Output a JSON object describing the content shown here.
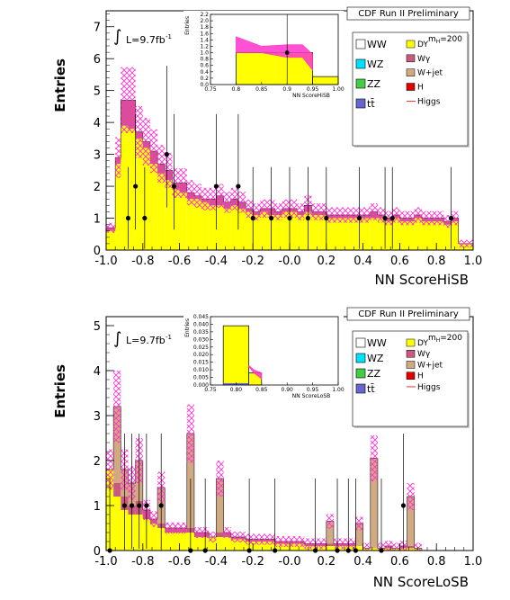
{
  "colors": {
    "dy": "#ffff00",
    "wgamma": "#c85a82",
    "wjet": "#d2aa82",
    "h": "#e00000",
    "ww": "#ffffff",
    "wz": "#00e0ff",
    "zz": "#44cc44",
    "tt": "#6666cc",
    "band": "#ff33cc",
    "data": "#000000"
  },
  "legend": {
    "mass": "m",
    "mass_sub": "H",
    "mass_val": "=200",
    "items": [
      {
        "label": "WW",
        "key": "ww"
      },
      {
        "label": "DY",
        "key": "dy"
      },
      {
        "label": "WZ",
        "key": "wz"
      },
      {
        "label": "Wγ",
        "key": "wgamma"
      },
      {
        "label": "ZZ",
        "key": "zz"
      },
      {
        "label": "W+jet",
        "key": "wjet"
      },
      {
        "label": "tt̄",
        "key": "tt"
      },
      {
        "label": "H",
        "key": "h"
      },
      {
        "label": "Higgs",
        "key": "higgs"
      }
    ]
  },
  "chart_data": [
    {
      "type": "bar",
      "title": "CDF Run II Preliminary",
      "lumi": "L=9.7fb",
      "lumi_sup": "-1",
      "xlabel": "NN ScoreHiSB",
      "ylabel": "Entries",
      "xlim": [
        -1.0,
        1.0
      ],
      "ylim": [
        0,
        7.5
      ],
      "xticks": [
        "-1.0",
        "-0.8",
        "-0.6",
        "-0.4",
        "-0.2",
        "-0.0",
        "0.2",
        "0.4",
        "0.6",
        "0.8",
        "1.0"
      ],
      "yticks": [
        "0",
        "1",
        "2",
        "3",
        "4",
        "5",
        "6",
        "7"
      ],
      "bin_edges": [
        -1.0,
        -0.95,
        -0.92,
        -0.88,
        -0.84,
        -0.8,
        -0.76,
        -0.72,
        -0.68,
        -0.64,
        -0.6,
        -0.56,
        -0.52,
        -0.48,
        -0.44,
        -0.4,
        -0.36,
        -0.32,
        -0.28,
        -0.24,
        -0.2,
        -0.16,
        -0.12,
        -0.08,
        -0.04,
        0.0,
        0.04,
        0.08,
        0.12,
        0.16,
        0.2,
        0.24,
        0.28,
        0.32,
        0.36,
        0.4,
        0.44,
        0.48,
        0.52,
        0.56,
        0.6,
        0.64,
        0.68,
        0.72,
        0.76,
        0.8,
        0.84,
        0.88,
        0.92,
        0.95,
        1.0
      ],
      "series": [
        {
          "name": "DY",
          "key": "dy",
          "values": [
            0.6,
            2.7,
            3.9,
            3.8,
            3.5,
            3.2,
            2.7,
            2.4,
            2.2,
            1.9,
            1.8,
            1.6,
            1.6,
            1.5,
            1.4,
            1.4,
            1.3,
            1.4,
            1.3,
            1.2,
            1.1,
            1.2,
            1.1,
            1.1,
            1.2,
            1.2,
            1.1,
            1.2,
            1.1,
            1.1,
            1.0,
            1.0,
            1.0,
            1.0,
            1.0,
            1.0,
            1.0,
            1.0,
            0.9,
            1.0,
            0.9,
            0.9,
            1.0,
            0.9,
            0.9,
            0.9,
            0.8,
            0.9,
            0.2,
            0.2
          ]
        },
        {
          "name": "Wγ",
          "key": "wgamma",
          "values": [
            0.1,
            0.2,
            0.8,
            0.9,
            0.2,
            0.2,
            0.4,
            0.3,
            0.3,
            0.2,
            0.3,
            0.2,
            0.1,
            0.1,
            0.2,
            0.3,
            0.2,
            0.2,
            0.2,
            0.1,
            0.1,
            0.1,
            0.2,
            0.1,
            0.1,
            0.1,
            0.1,
            0.2,
            0.1,
            0.1,
            0.1,
            0.1,
            0.1,
            0.1,
            0.1,
            0.1,
            0.2,
            0.1,
            0.1,
            0.1,
            0.1,
            0.1,
            0.1,
            0.1,
            0.1,
            0.1,
            0.1,
            0.1,
            0.0,
            0.0
          ]
        },
        {
          "name": "W+jet",
          "key": "wjet",
          "values": [
            0.0,
            0.0,
            0.0,
            0.0,
            0.0,
            0.0,
            0.0,
            0.0,
            0.0,
            0.0,
            0.0,
            0.0,
            0.0,
            0.0,
            0.0,
            0.0,
            0.0,
            0.0,
            0.0,
            0.0,
            0.0,
            0.0,
            0.0,
            0.0,
            0.0,
            0.0,
            0.0,
            0.0,
            0.0,
            0.0,
            0.0,
            0.0,
            0.0,
            0.0,
            0.0,
            0.0,
            0.0,
            0.0,
            0.0,
            0.0,
            0.0,
            0.0,
            0.0,
            0.0,
            0.0,
            0.0,
            0.0,
            0.0,
            0.0,
            0.0
          ]
        }
      ],
      "band_rel": 0.22,
      "data_points": {
        "x": [
          -0.88,
          -0.84,
          -0.79,
          -0.67,
          -0.63,
          -0.4,
          -0.28,
          -0.2,
          -0.1,
          0.0,
          0.1,
          0.2,
          0.38,
          0.52,
          0.56,
          0.88
        ],
        "y": [
          1,
          2,
          1,
          3,
          2,
          2,
          2,
          1,
          1,
          1,
          1,
          1,
          1,
          1,
          1,
          1
        ]
      },
      "inset": {
        "xlabel": "NN ScoreHiSB",
        "ylabel": "Entries",
        "xlim": [
          0.75,
          1.0
        ],
        "ylim": [
          0,
          2.2
        ],
        "xticks": [
          "0.75",
          "0.8",
          "0.85",
          "0.9",
          "0.95",
          "1.00"
        ],
        "yticks": [
          "0.0",
          "0.2",
          "0.4",
          "0.6",
          "0.8",
          "1.0",
          "1.2",
          "1.4",
          "1.6",
          "1.8",
          "2.0",
          "2.2"
        ],
        "bin_edges": [
          0.8,
          0.95,
          1.0
        ],
        "dy_values": [
          1.0,
          0.25
        ],
        "band_x": [
          0.8,
          0.85,
          0.9,
          0.93,
          0.95
        ],
        "band_lo": [
          1.0,
          1.0,
          0.85,
          0.85,
          0.45
        ],
        "band_hi": [
          1.5,
          1.2,
          1.25,
          1.25,
          0.95
        ],
        "data_x": [
          0.9
        ],
        "data_y": [
          1.0
        ]
      }
    },
    {
      "type": "bar",
      "title": "CDF Run II Preliminary",
      "lumi": "L=9.7fb",
      "lumi_sup": "-1",
      "xlabel": "NN ScoreLoSB",
      "ylabel": "Entries",
      "xlim": [
        -1.0,
        1.0
      ],
      "ylim": [
        0,
        5.2
      ],
      "xticks": [
        "-1.0",
        "-0.8",
        "-0.6",
        "-0.4",
        "-0.2",
        "-0.0",
        "0.2",
        "0.4",
        "0.6",
        "0.8",
        "1.0"
      ],
      "yticks": [
        "0",
        "1",
        "2",
        "3",
        "4",
        "5"
      ],
      "bin_edges": [
        -1.0,
        -0.96,
        -0.92,
        -0.88,
        -0.84,
        -0.8,
        -0.76,
        -0.72,
        -0.68,
        -0.64,
        -0.6,
        -0.56,
        -0.52,
        -0.48,
        -0.44,
        -0.4,
        -0.36,
        -0.32,
        -0.28,
        -0.24,
        -0.2,
        -0.16,
        -0.12,
        -0.08,
        -0.04,
        0.0,
        0.04,
        0.08,
        0.12,
        0.16,
        0.2,
        0.24,
        0.28,
        0.32,
        0.36,
        0.4,
        0.44,
        0.48,
        0.52,
        0.56,
        0.6,
        0.64,
        0.68,
        0.72,
        0.76,
        0.8,
        0.84,
        0.88,
        0.92,
        0.96,
        1.0
      ],
      "series": [
        {
          "name": "DY",
          "key": "dy",
          "values": [
            1.8,
            1.2,
            0.9,
            0.8,
            0.8,
            0.7,
            0.6,
            0.5,
            0.4,
            0.4,
            0.4,
            0.4,
            0.3,
            0.3,
            0.3,
            0.3,
            0.3,
            0.25,
            0.25,
            0.2,
            0.2,
            0.2,
            0.2,
            0.15,
            0.15,
            0.15,
            0.15,
            0.1,
            0.1,
            0.1,
            0.1,
            0.1,
            0.1,
            0.1,
            0.1,
            0.05,
            0.05,
            0.05,
            0.05,
            0.05,
            0.05,
            0.05,
            0.05,
            0.0,
            0.0,
            0.0,
            0.0,
            0.0,
            0.0,
            0.0
          ]
        },
        {
          "name": "Wγ",
          "key": "wgamma",
          "values": [
            0.0,
            0.3,
            0.3,
            0.2,
            0.3,
            0.2,
            0.1,
            0.1,
            0.1,
            0.1,
            0.1,
            0.1,
            0.1,
            0.1,
            0.0,
            0.1,
            0.1,
            0.05,
            0.05,
            0.05,
            0.05,
            0.05,
            0.05,
            0.05,
            0.05,
            0.05,
            0.05,
            0.05,
            0.05,
            0.05,
            0.05,
            0.05,
            0.05,
            0.05,
            0.0,
            0.0,
            0.0,
            0.0,
            0.05,
            0.0,
            0.05,
            0.05,
            0.0,
            0.0,
            0.0,
            0.0,
            0.0,
            0.0,
            0.0,
            0.0
          ]
        },
        {
          "name": "W+jet",
          "key": "wjet",
          "values": [
            0.0,
            1.7,
            0.6,
            0.5,
            0.9,
            0.0,
            0.0,
            0.8,
            0.0,
            0.0,
            0.0,
            2.1,
            0.0,
            0.0,
            0.0,
            1.2,
            0.0,
            0.0,
            0.0,
            0.0,
            0.0,
            0.0,
            0.0,
            0.0,
            0.0,
            0.0,
            0.0,
            0.0,
            0.0,
            0.0,
            0.5,
            0.0,
            0.0,
            0.0,
            0.5,
            0.0,
            2.0,
            0.0,
            0.0,
            0.0,
            0.0,
            1.1,
            0.0,
            0.0,
            0.0,
            0.0,
            0.0,
            0.0,
            0.0,
            0.0
          ]
        }
      ],
      "band_rel": 0.25,
      "data_points": {
        "x": [
          -0.98,
          -0.9,
          -0.86,
          -0.82,
          -0.78,
          -0.7,
          -0.54,
          -0.46,
          -0.22,
          -0.08,
          0.14,
          0.26,
          0.32,
          0.36,
          0.5,
          0.62
        ],
        "y": [
          0,
          1,
          1,
          1,
          1,
          1,
          0,
          0,
          0,
          0,
          0,
          0,
          0,
          0,
          0,
          1
        ]
      },
      "inset": {
        "xlabel": "NN ScoreLoSB",
        "ylabel": "Entries",
        "xlim": [
          0.75,
          1.0
        ],
        "ylim": [
          0,
          0.045
        ],
        "xticks": [
          "0.75",
          "0.80",
          "0.85",
          "0.90",
          "0.95",
          "1.00"
        ],
        "yticks": [
          "0.000",
          "0.005",
          "0.010",
          "0.015",
          "0.020",
          "0.025",
          "0.030",
          "0.035",
          "0.040",
          "0.045"
        ],
        "bin_edges": [
          0.775,
          0.825,
          0.85
        ],
        "dy_values": [
          0.039,
          0.008
        ],
        "band_x": [
          0.825,
          0.835,
          0.85
        ],
        "band_lo": [
          0.012,
          0.008,
          0.004
        ],
        "band_hi": [
          0.013,
          0.01,
          0.008
        ],
        "data_x": [],
        "data_y": []
      }
    }
  ]
}
